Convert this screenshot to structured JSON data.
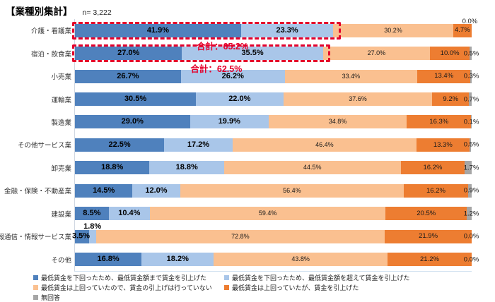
{
  "header": {
    "title": "【業種別集計】",
    "sample_size": "n= 3,222"
  },
  "chart_data": {
    "type": "bar",
    "orientation": "horizontal",
    "stacked": true,
    "unit": "%",
    "xlim": [
      0,
      100
    ],
    "grid": false,
    "legend_position": "bottom",
    "categories": [
      "介護・看護業",
      "宿泊・飲食業",
      "小売業",
      "運輸業",
      "製造業",
      "その他サービス業",
      "卸売業",
      "金融・保険・不動産業",
      "建設業",
      "情報通信・情報サービス業",
      "その他"
    ],
    "series": [
      {
        "name": "最低賃金を下回ったため、最低賃金額まで賃金を引上げた",
        "color": "#4F81BD",
        "values": [
          41.9,
          27.0,
          26.7,
          30.5,
          29.0,
          22.5,
          18.8,
          14.5,
          8.5,
          3.5,
          16.8
        ]
      },
      {
        "name": "最低賃金を下回ったため、最低賃金額を超えて賃金を引上げた",
        "color": "#A9C6E9",
        "values": [
          23.3,
          35.5,
          26.2,
          22.0,
          19.9,
          17.2,
          18.8,
          12.0,
          10.4,
          1.8,
          18.2
        ]
      },
      {
        "name": "最低賃金は上回っていたので、賃金の引上げは行っていない",
        "color": "#FAC090",
        "values": [
          30.2,
          27.0,
          33.4,
          37.6,
          34.8,
          46.4,
          44.5,
          56.4,
          59.4,
          72.8,
          43.8
        ]
      },
      {
        "name": "最低賃金は上回っていたが、賃金を引上げた",
        "color": "#ED7D31",
        "values": [
          4.7,
          10.0,
          13.4,
          9.2,
          16.3,
          13.3,
          16.2,
          16.2,
          20.5,
          21.9,
          21.2
        ]
      },
      {
        "name": "無回答",
        "color": "#A6A6A6",
        "values": [
          0.0,
          0.5,
          0.3,
          0.7,
          0.1,
          0.5,
          1.7,
          0.9,
          1.2,
          0.0,
          0.0
        ]
      }
    ],
    "annotations": [
      {
        "row": 0,
        "category": "介護・看護業",
        "span_pct": 65.2,
        "label": "合計：65.2%",
        "color": "#e4002b"
      },
      {
        "row": 1,
        "category": "宿泊・飲食業",
        "span_pct": 62.5,
        "label": "合計：62.5%",
        "color": "#e4002b"
      }
    ]
  }
}
